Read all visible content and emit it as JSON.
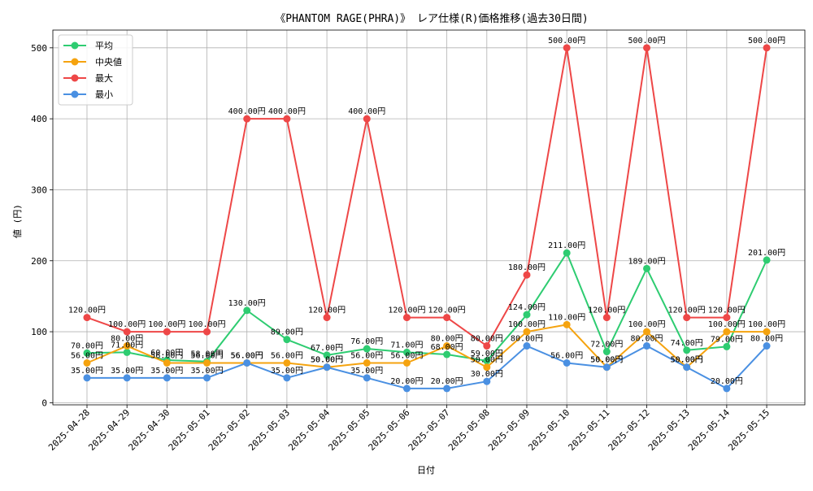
{
  "chart_data": {
    "type": "line",
    "title": "《PHANTOM RAGE(PHRA)》 レア仕様(R)価格推移(過去30日間)",
    "xlabel": "日付",
    "ylabel": "値 (円)",
    "ylim": [
      -3,
      525
    ],
    "yticks": [
      0,
      100,
      200,
      300,
      400,
      500
    ],
    "grid": true,
    "legend_position": "top-left",
    "label_suffix": "円",
    "categories": [
      "2025-04-28",
      "2025-04-29",
      "2025-04-30",
      "2025-05-01",
      "2025-05-02",
      "2025-05-03",
      "2025-05-04",
      "2025-05-05",
      "2025-05-06",
      "2025-05-07",
      "2025-05-08",
      "2025-05-09",
      "2025-05-10",
      "2025-05-11",
      "2025-05-12",
      "2025-05-13",
      "2025-05-14",
      "2025-05-15"
    ],
    "series": [
      {
        "name": "平均",
        "color": "#2ecc71",
        "values": [
          70,
          71,
          60,
          58,
          130,
          89,
          67,
          76,
          71,
          68,
          59,
          124,
          211,
          72,
          189,
          74,
          79,
          201
        ]
      },
      {
        "name": "中央値",
        "color": "#f5a30f",
        "values": [
          56,
          80,
          56,
          56,
          56,
          56,
          50,
          56,
          56,
          80,
          50,
          100,
          110,
          50,
          100,
          50,
          100,
          100
        ]
      },
      {
        "name": "最大",
        "color": "#ee4747",
        "values": [
          120,
          100,
          100,
          100,
          400,
          400,
          120,
          400,
          120,
          120,
          80,
          180,
          500,
          120,
          500,
          120,
          120,
          500
        ]
      },
      {
        "name": "最小",
        "color": "#4a90e2",
        "values": [
          35,
          35,
          35,
          35,
          56,
          35,
          50,
          35,
          20,
          20,
          30,
          80,
          56,
          50,
          80,
          50,
          20,
          80
        ]
      }
    ]
  }
}
